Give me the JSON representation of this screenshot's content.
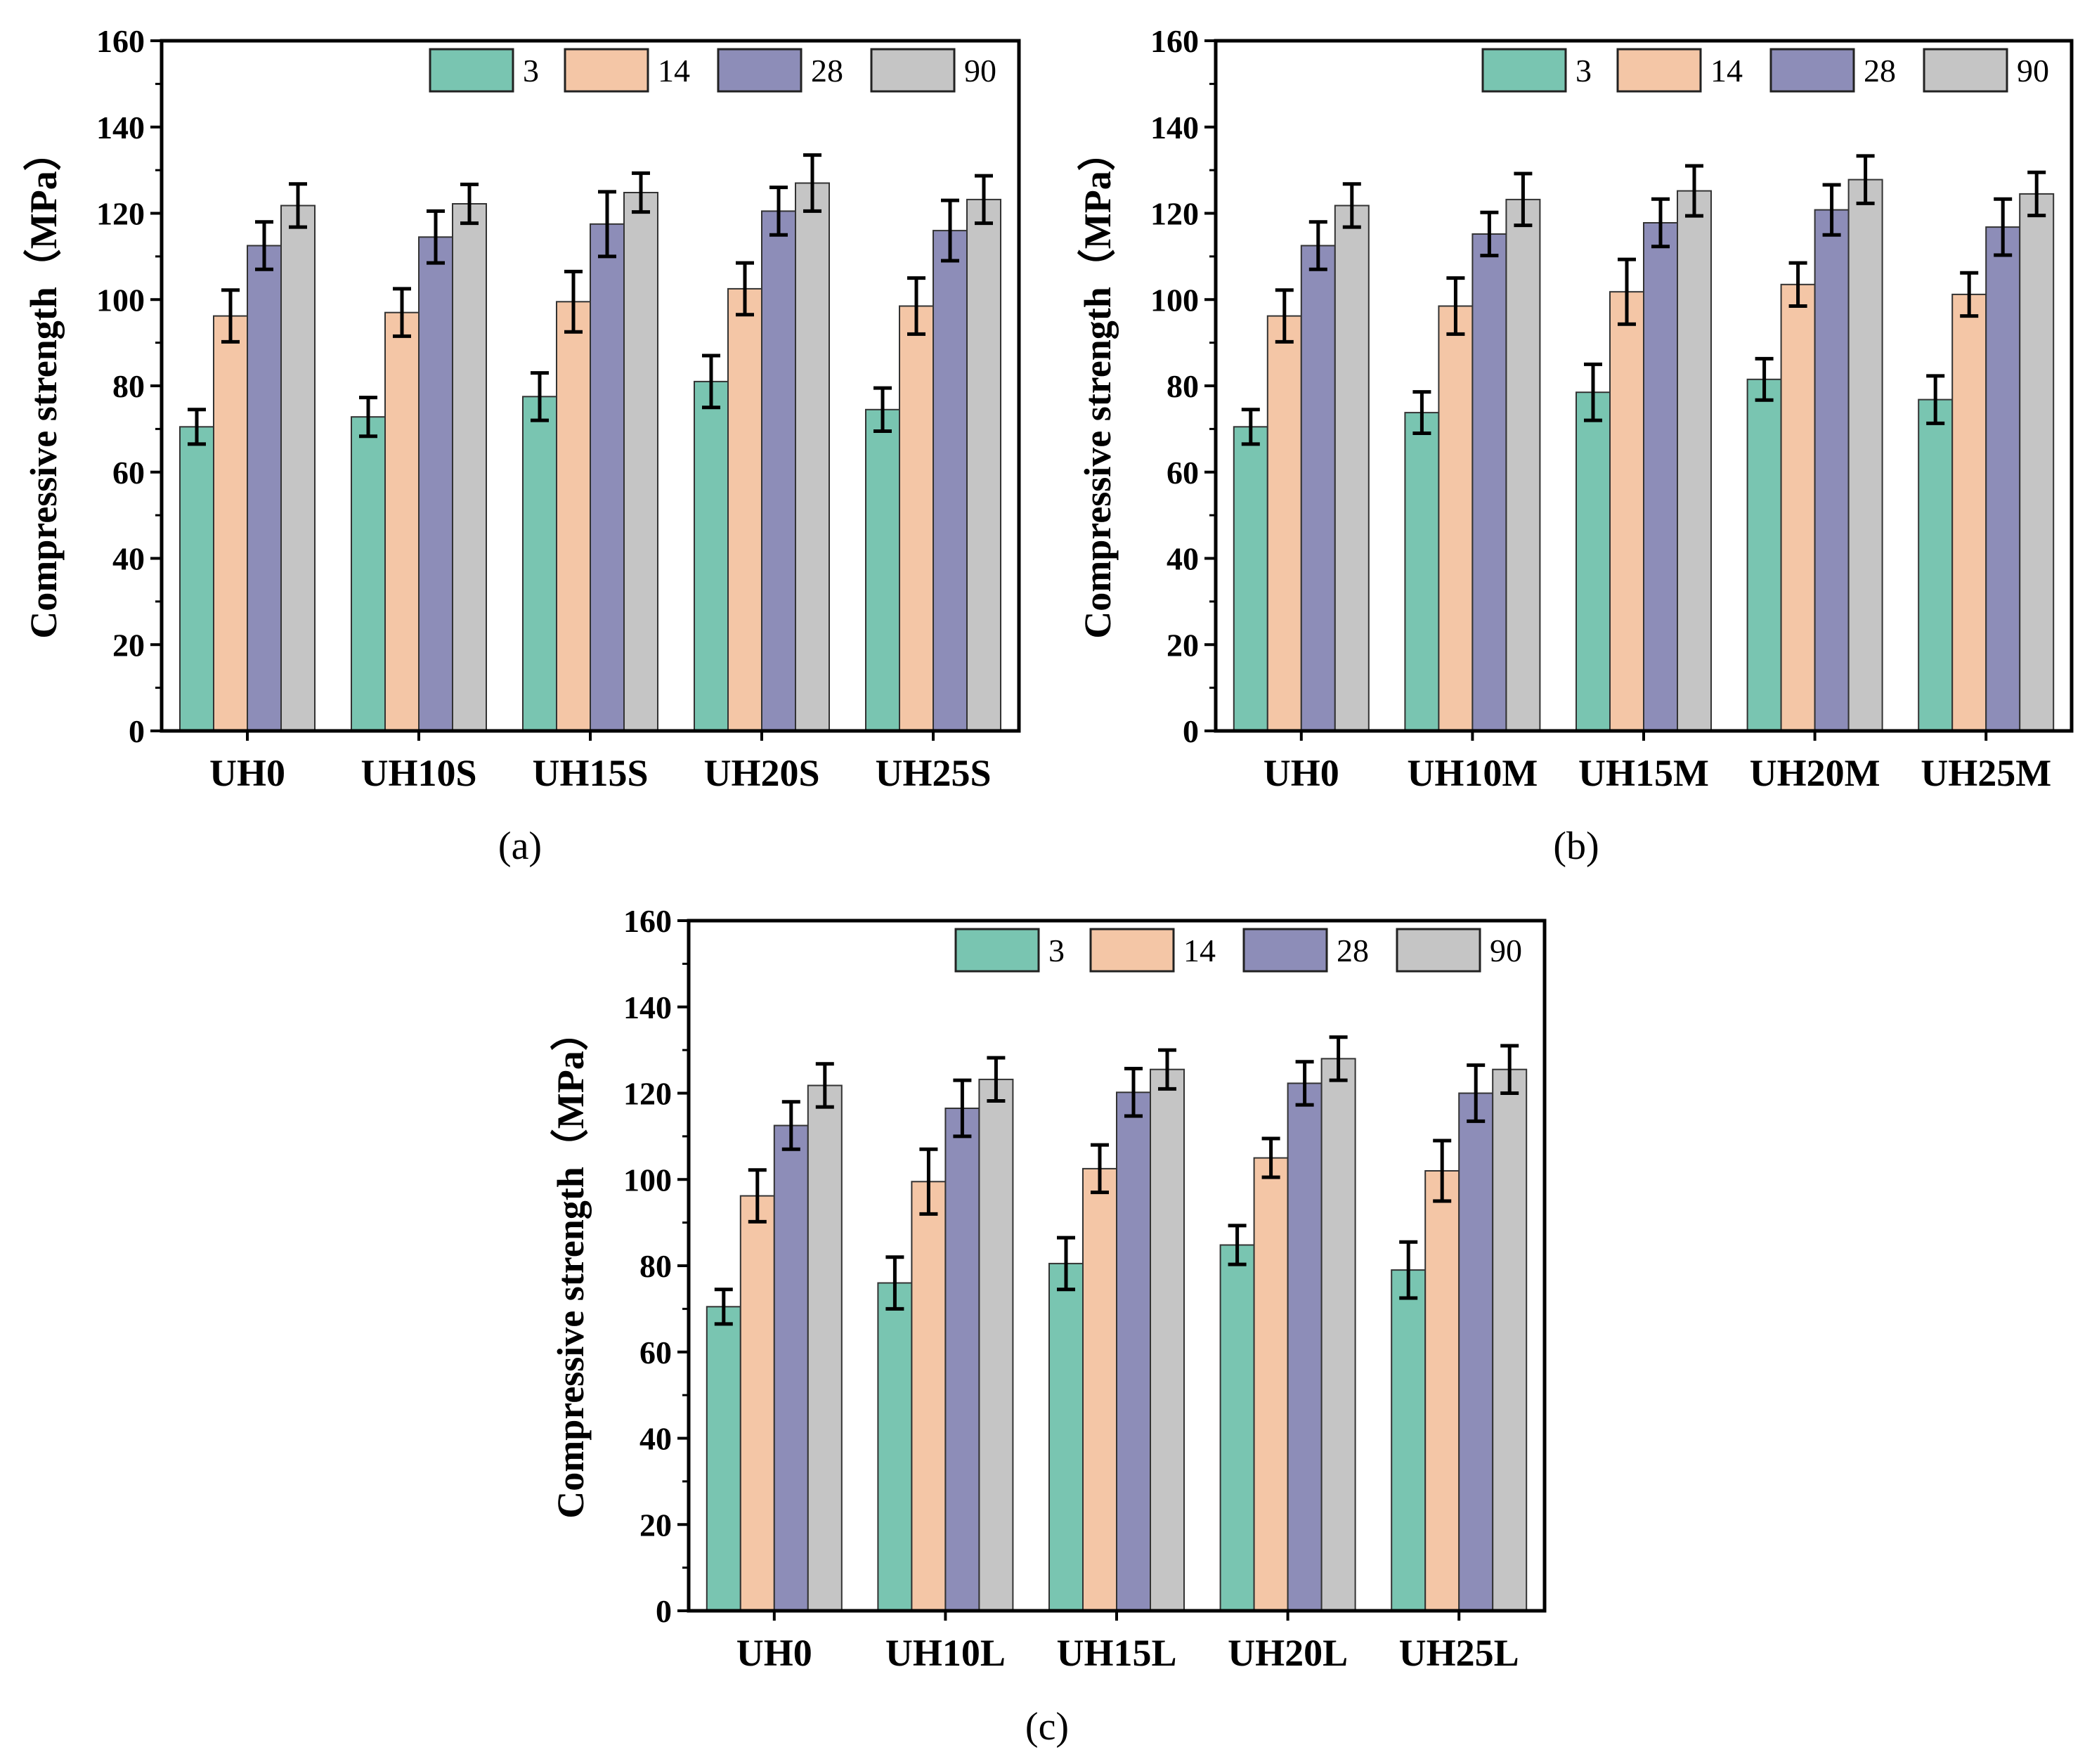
{
  "chart_data": [
    {
      "type": "bar",
      "panel_label": "(a)",
      "ylabel": "Compressive strength（MPa）",
      "xlabel": "",
      "ylim": [
        0,
        160
      ],
      "yticks": [
        "0",
        "20",
        "40",
        "60",
        "80",
        "100",
        "120",
        "140",
        "160"
      ],
      "legend_position": "top-right",
      "categories": [
        "UH0",
        "UH10S",
        "UH15S",
        "UH20S",
        "UH25S"
      ],
      "series": [
        {
          "name": "3",
          "color": "#79c5b1",
          "values": [
            70.5,
            72.8,
            77.5,
            81,
            74.5
          ],
          "errors": [
            4,
            4.5,
            5.5,
            6,
            5
          ]
        },
        {
          "name": "14",
          "color": "#f4c6a6",
          "values": [
            96.2,
            97,
            99.5,
            102.5,
            98.5
          ],
          "errors": [
            6,
            5.5,
            7,
            6,
            6.5
          ]
        },
        {
          "name": "28",
          "color": "#8d8db8",
          "values": [
            112.5,
            114.5,
            117.5,
            120.5,
            116
          ],
          "errors": [
            5.5,
            6,
            7.5,
            5.5,
            7
          ]
        },
        {
          "name": "90",
          "color": "#c5c5c5",
          "values": [
            121.8,
            122.2,
            124.8,
            127,
            123.2
          ],
          "errors": [
            5,
            4.5,
            4.5,
            6.5,
            5.5
          ]
        }
      ]
    },
    {
      "type": "bar",
      "panel_label": "(b)",
      "ylabel": "Compressive strength（MPa）",
      "xlabel": "",
      "ylim": [
        0,
        160
      ],
      "yticks": [
        "0",
        "20",
        "40",
        "60",
        "80",
        "100",
        "120",
        "140",
        "160"
      ],
      "legend_position": "top-right",
      "categories": [
        "UH0",
        "UH10M",
        "UH15M",
        "UH20M",
        "UH25M"
      ],
      "series": [
        {
          "name": "3",
          "color": "#79c5b1",
          "values": [
            70.5,
            73.8,
            78.5,
            81.5,
            76.8
          ],
          "errors": [
            4,
            4.8,
            6.5,
            4.8,
            5.5
          ]
        },
        {
          "name": "14",
          "color": "#f4c6a6",
          "values": [
            96.2,
            98.5,
            101.8,
            103.5,
            101.2
          ],
          "errors": [
            6,
            6.5,
            7.5,
            5,
            5
          ]
        },
        {
          "name": "28",
          "color": "#8d8db8",
          "values": [
            112.5,
            115.2,
            117.8,
            120.8,
            116.8
          ],
          "errors": [
            5.5,
            5,
            5.5,
            5.8,
            6.5
          ]
        },
        {
          "name": "90",
          "color": "#c5c5c5",
          "values": [
            121.8,
            123.2,
            125.2,
            127.8,
            124.5
          ],
          "errors": [
            5,
            6,
            5.8,
            5.5,
            5
          ]
        }
      ]
    },
    {
      "type": "bar",
      "panel_label": "(c)",
      "ylabel": "Compressive strength（MPa）",
      "xlabel": "",
      "ylim": [
        0,
        160
      ],
      "yticks": [
        "0",
        "20",
        "40",
        "60",
        "80",
        "100",
        "120",
        "140",
        "160"
      ],
      "legend_position": "top-right",
      "categories": [
        "UH0",
        "UH10L",
        "UH15L",
        "UH20L",
        "UH25L"
      ],
      "series": [
        {
          "name": "3",
          "color": "#79c5b1",
          "values": [
            70.5,
            76,
            80.5,
            84.8,
            79
          ],
          "errors": [
            4,
            6,
            6,
            4.5,
            6.5
          ]
        },
        {
          "name": "14",
          "color": "#f4c6a6",
          "values": [
            96.2,
            99.5,
            102.5,
            105,
            102
          ],
          "errors": [
            6,
            7.5,
            5.5,
            4.5,
            7
          ]
        },
        {
          "name": "28",
          "color": "#8d8db8",
          "values": [
            112.5,
            116.5,
            120.2,
            122.3,
            120
          ],
          "errors": [
            5.5,
            6.5,
            5.5,
            5,
            6.5
          ]
        },
        {
          "name": "90",
          "color": "#c5c5c5",
          "values": [
            121.8,
            123.2,
            125.5,
            128,
            125.5
          ],
          "errors": [
            5,
            5,
            4.5,
            5,
            5.5
          ]
        }
      ]
    }
  ]
}
